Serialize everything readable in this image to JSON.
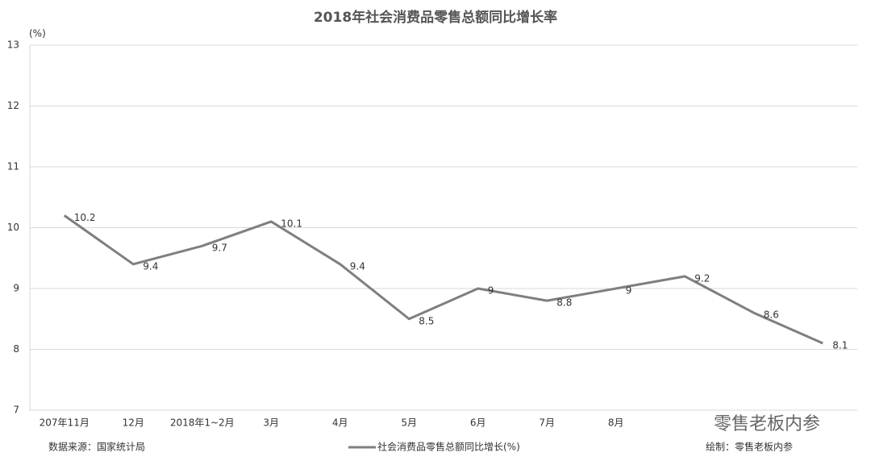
{
  "chart_data": {
    "type": "line",
    "title": "2018年社会消费品零售总额同比增长率",
    "y_label": "(%)",
    "categories": [
      "207年11月",
      "12月",
      "2018年1~2月",
      "3月",
      "4月",
      "5月",
      "6月",
      "7月",
      "8月",
      null,
      null,
      null
    ],
    "series": [
      {
        "name": "社会消费品零售总额同比增长(%)",
        "color": "#7f7f7f",
        "values": [
          10.2,
          9.4,
          9.7,
          10.1,
          9.4,
          8.5,
          9,
          8.8,
          9,
          9.2,
          8.6,
          8.1
        ]
      }
    ],
    "ylim": [
      7,
      13
    ],
    "yticks": [
      7,
      8,
      9,
      10,
      11,
      12,
      13
    ],
    "grid": true,
    "legend": "bottom",
    "source": "数据来源：国家统计局",
    "credit": "绘制：零售老板内参",
    "watermark": "零售老板内参"
  }
}
